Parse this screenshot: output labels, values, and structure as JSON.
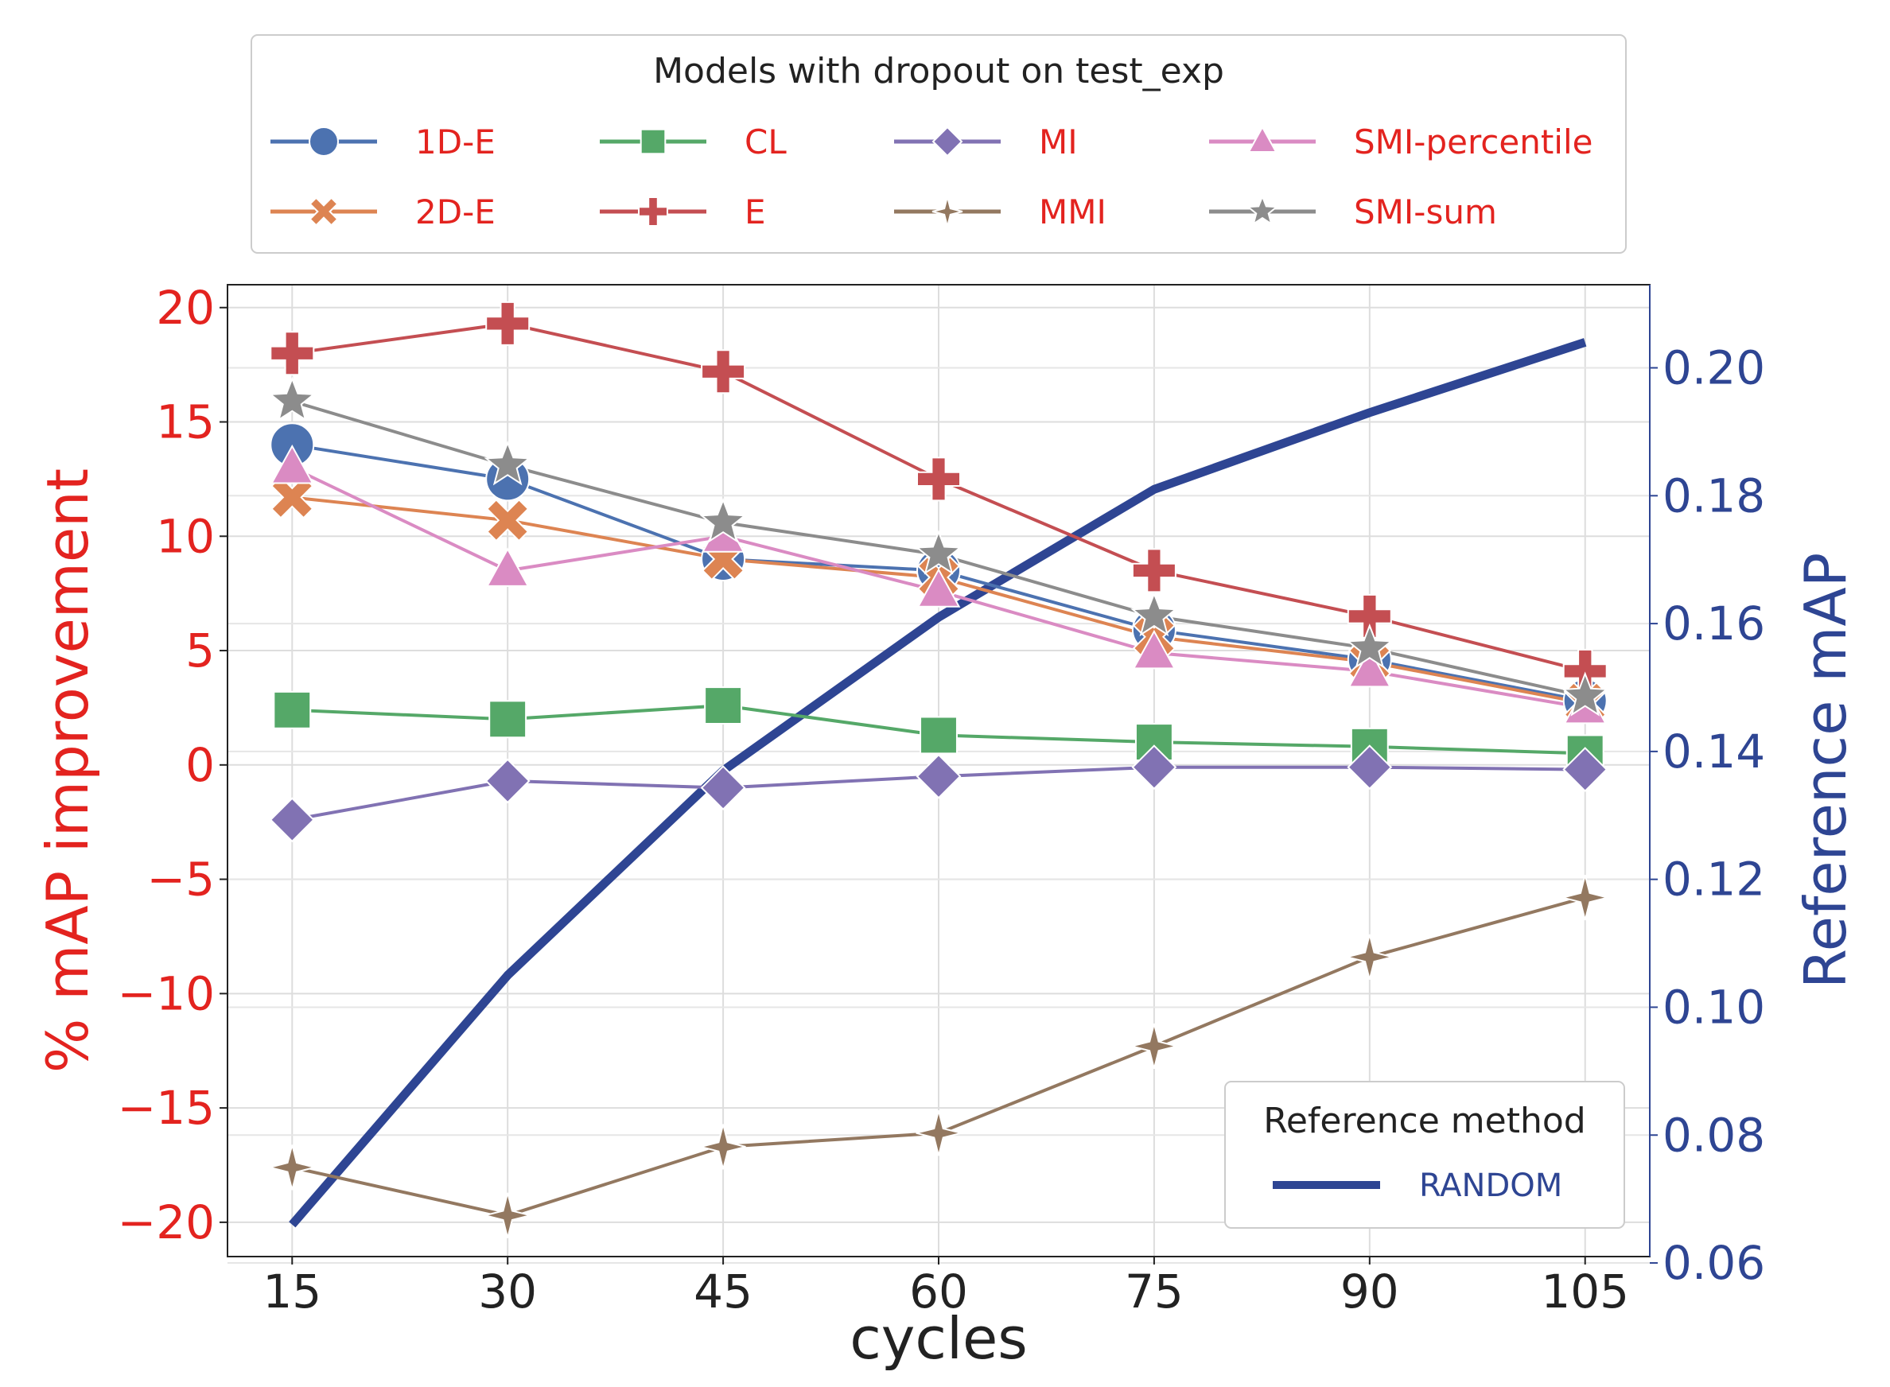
{
  "chart_data": {
    "type": "line",
    "legend_title": "Models with dropout on test_exp",
    "x": [
      15,
      30,
      45,
      60,
      75,
      90,
      105
    ],
    "xlabel": "cycles",
    "ylabel": "% mAP improvement",
    "y2label": "Reference mAP",
    "xlim": [
      10.5,
      109.5
    ],
    "ylim": [
      -21.5,
      21
    ],
    "y2lim": [
      0.061,
      0.213
    ],
    "grid": true,
    "xticks": [
      "15",
      "30",
      "45",
      "60",
      "75",
      "90",
      "105"
    ],
    "yticks": [
      "20",
      "15",
      "10",
      "5",
      "0",
      "−5",
      "−10",
      "−15",
      "−20"
    ],
    "y2ticks": [
      "0.20",
      "0.18",
      "0.16",
      "0.14",
      "0.12",
      "0.10",
      "0.08",
      "0.06"
    ],
    "legend_position": "top",
    "series": [
      {
        "name": "1D-E",
        "axis": "left",
        "marker": "circle",
        "color": "#4c72b0",
        "values": [
          14.0,
          12.5,
          9.0,
          8.5,
          5.9,
          4.6,
          2.8
        ]
      },
      {
        "name": "2D-E",
        "axis": "left",
        "marker": "x",
        "color": "#dd8452",
        "values": [
          11.7,
          10.7,
          9.0,
          8.2,
          5.6,
          4.5,
          2.7
        ]
      },
      {
        "name": "CL",
        "axis": "left",
        "marker": "square",
        "color": "#55a868",
        "values": [
          2.4,
          2.0,
          2.6,
          1.3,
          1.0,
          0.8,
          0.5
        ]
      },
      {
        "name": "E",
        "axis": "left",
        "marker": "plus",
        "color": "#c44e52",
        "values": [
          18.0,
          19.3,
          17.2,
          12.5,
          8.5,
          6.5,
          4.1
        ]
      },
      {
        "name": "MI",
        "axis": "left",
        "marker": "diamond",
        "color": "#8172b3",
        "values": [
          -2.4,
          -0.7,
          -1.0,
          -0.5,
          -0.1,
          -0.1,
          -0.2
        ]
      },
      {
        "name": "MMI",
        "axis": "left",
        "marker": "thin-diamond",
        "color": "#937860",
        "values": [
          -17.6,
          -19.7,
          -16.7,
          -16.1,
          -12.3,
          -8.4,
          -5.8
        ]
      },
      {
        "name": "SMI-percentile",
        "axis": "left",
        "marker": "triangle",
        "color": "#da8bc3",
        "values": [
          13.0,
          8.5,
          10.0,
          7.6,
          4.9,
          4.1,
          2.5
        ]
      },
      {
        "name": "SMI-sum",
        "axis": "left",
        "marker": "star",
        "color": "#8c8c8c",
        "values": [
          15.9,
          13.1,
          10.6,
          9.2,
          6.5,
          5.1,
          3.0
        ]
      }
    ],
    "reference": {
      "legend_title": "Reference method",
      "legend_position": "bottom-right",
      "series": [
        {
          "name": "RANDOM",
          "axis": "right",
          "color": "#2e4593",
          "values": [
            0.066,
            0.105,
            0.137,
            0.161,
            0.181,
            0.193,
            0.204
          ]
        }
      ]
    }
  }
}
